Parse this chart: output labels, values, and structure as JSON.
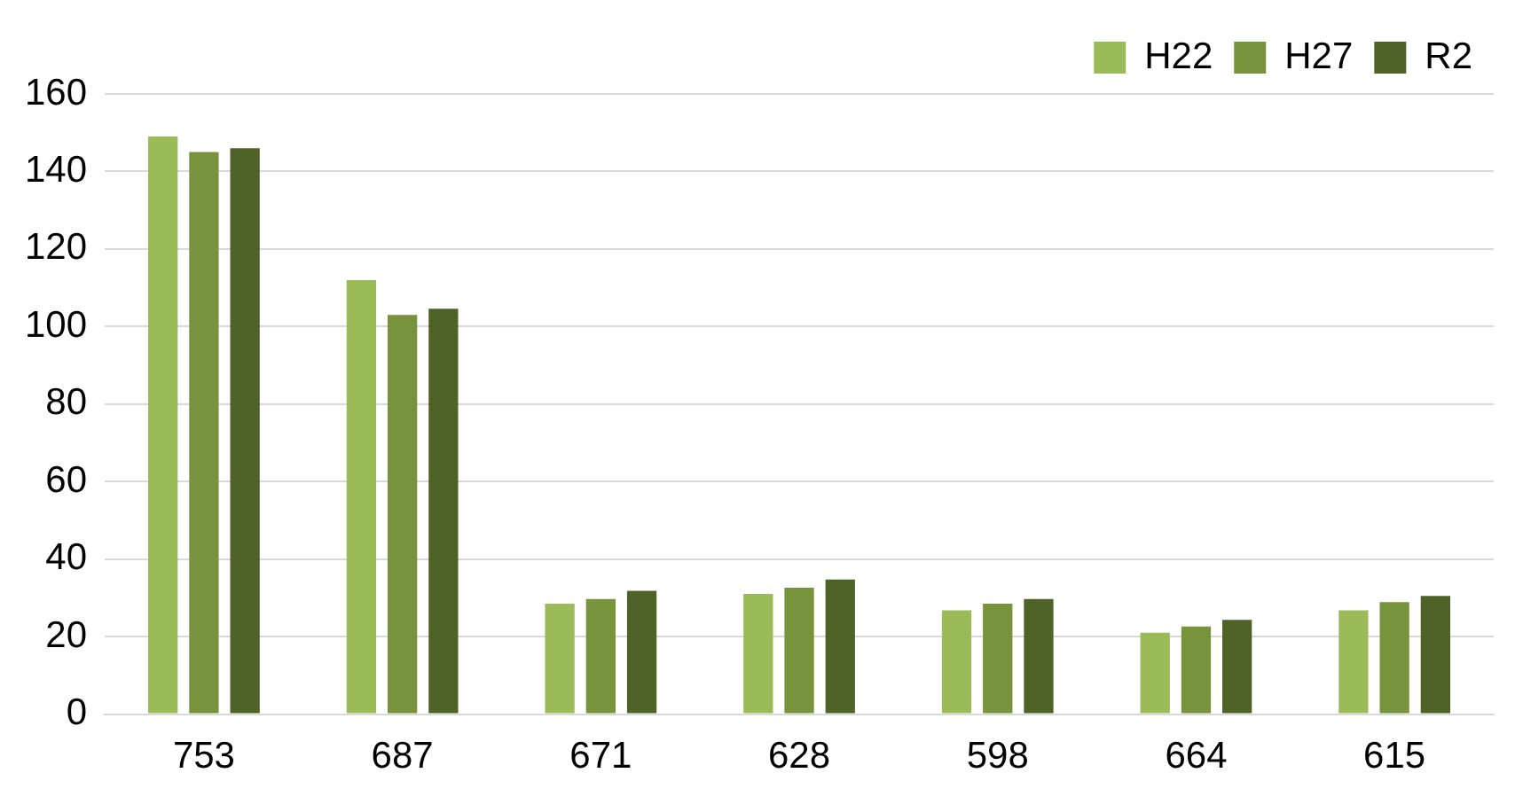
{
  "chart_data": {
    "type": "bar",
    "categories": [
      "753",
      "687",
      "671",
      "628",
      "598",
      "664",
      "615"
    ],
    "series": [
      {
        "name": "H22",
        "color": "#9bbb59",
        "values": [
          149,
          112,
          28.5,
          31,
          26.8,
          21,
          26.8
        ]
      },
      {
        "name": "H27",
        "color": "#77933c",
        "values": [
          145,
          103,
          29.7,
          32.6,
          28.5,
          22.6,
          28.9
        ]
      },
      {
        "name": "R2",
        "color": "#4f6228",
        "values": [
          146,
          104.6,
          31.8,
          34.7,
          29.7,
          24.3,
          30.5
        ]
      }
    ],
    "ylim": [
      0,
      160
    ],
    "yticks": [
      0,
      20,
      40,
      60,
      80,
      100,
      120,
      140,
      160
    ],
    "grid": "y",
    "legend": "top right"
  }
}
